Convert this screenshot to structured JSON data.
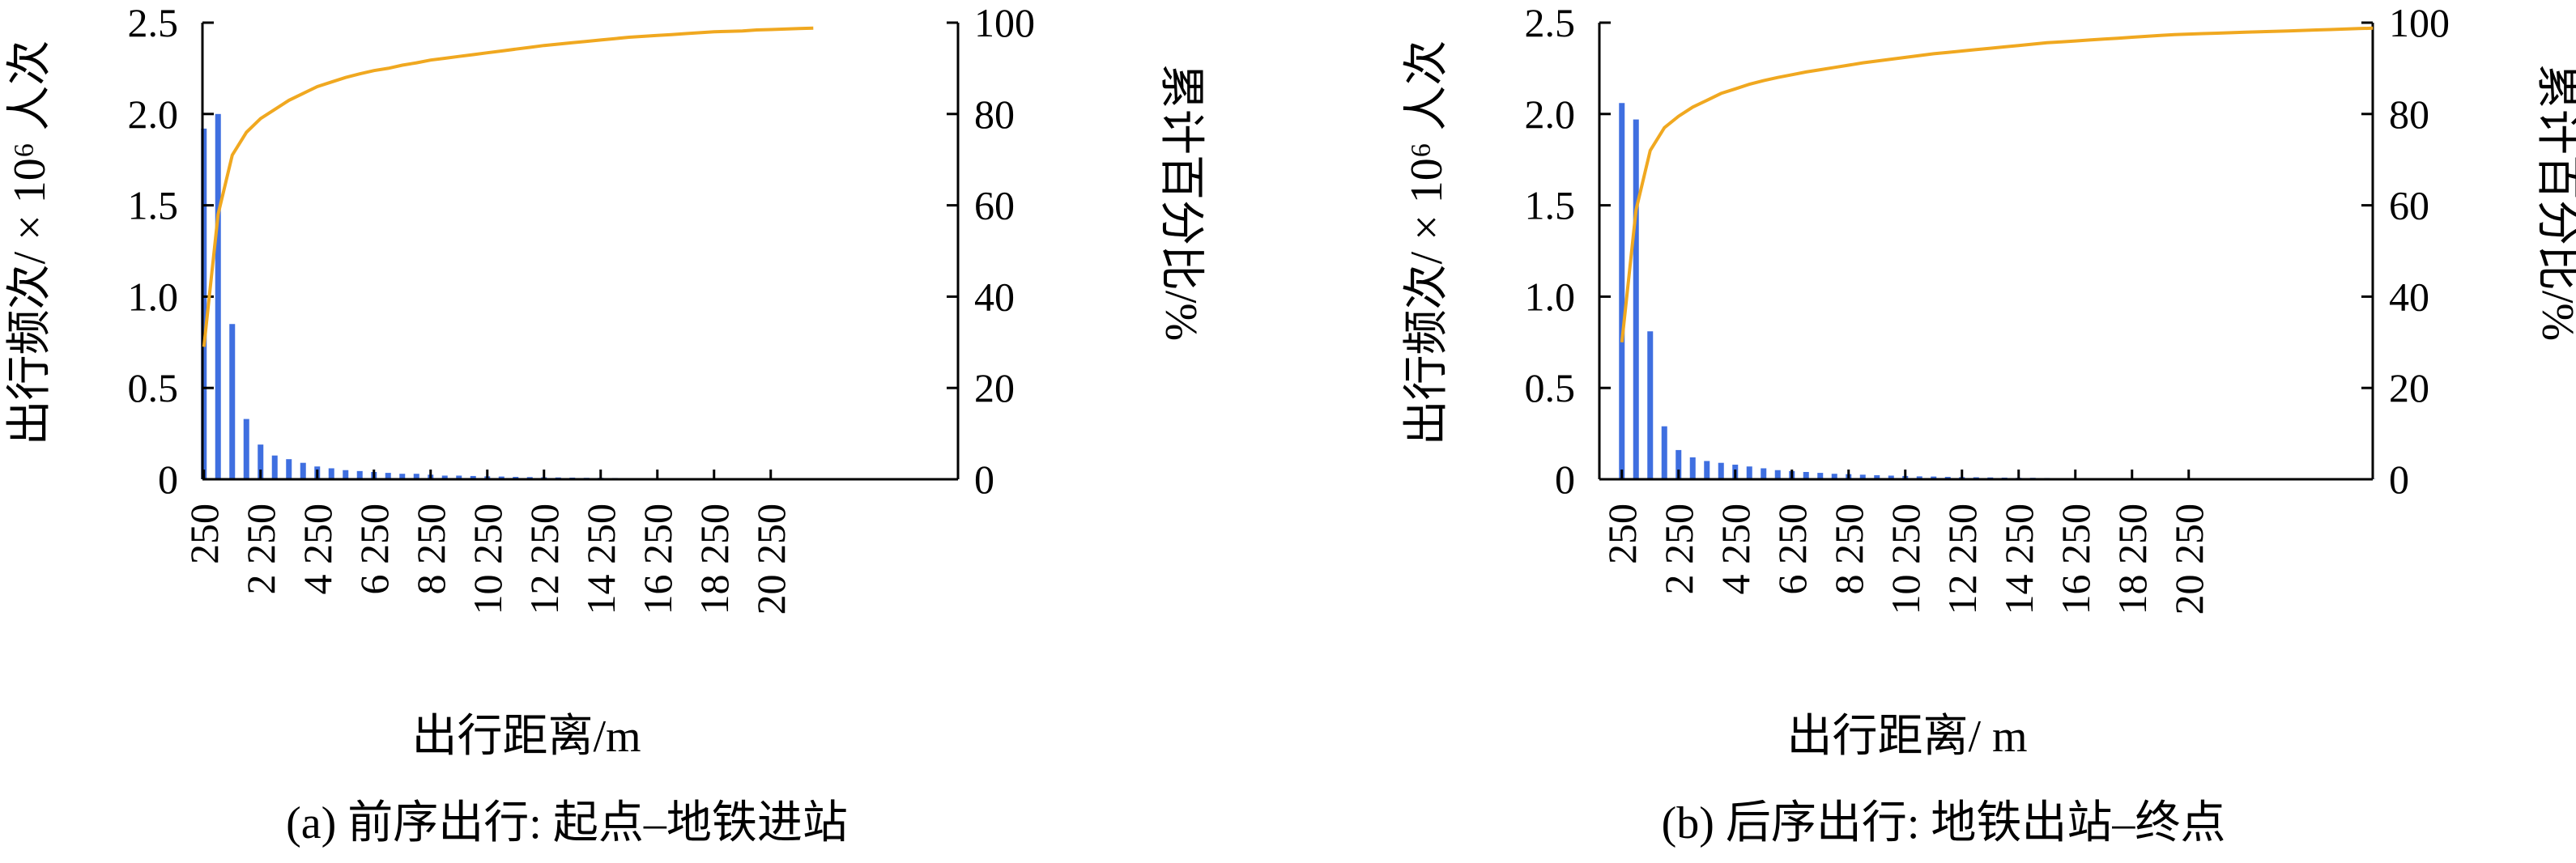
{
  "chart_data": [
    {
      "type": "bar+line",
      "caption": "(a) 前序出行: 起点–地铁进站",
      "xlabel": "出行距离/m",
      "ylabel_left": "出行频次/ × 10⁶ 人次",
      "ylabel_right": "累计百分比/%",
      "ylim_left": [
        0,
        2.5
      ],
      "ylim_right": [
        0,
        100
      ],
      "left_ticks": [
        "0",
        "0.5",
        "1.0",
        "1.5",
        "2.0",
        "2.5"
      ],
      "right_ticks": [
        "0",
        "20",
        "40",
        "60",
        "80",
        "100"
      ],
      "x_tick_labels": [
        "250",
        "2 250",
        "4 250",
        "6 250",
        "8 250",
        "10 250",
        "12 250",
        "14 250",
        "16 250",
        "18 250",
        "20 250"
      ],
      "bin_width": 500,
      "first_bin": 250,
      "bar_color": "#3f6fe0",
      "line_color": "#f0a820",
      "bars": [
        1.92,
        2.0,
        0.85,
        0.33,
        0.19,
        0.13,
        0.11,
        0.09,
        0.07,
        0.06,
        0.05,
        0.045,
        0.04,
        0.035,
        0.03,
        0.03,
        0.025,
        0.02,
        0.02,
        0.018,
        0.016,
        0.015,
        0.013,
        0.012,
        0.011,
        0.01,
        0.009,
        0.008,
        0.008,
        0.007,
        0.006,
        0.006,
        0.005,
        0.005,
        0.004,
        0.004,
        0.004,
        0.003,
        0.003,
        0.003,
        0.003,
        0.002,
        0.002,
        0.002
      ],
      "cumulative": [
        29,
        58,
        71,
        76,
        79,
        81,
        83,
        84.5,
        86,
        87,
        88,
        88.8,
        89.5,
        90,
        90.7,
        91.2,
        91.8,
        92.2,
        92.6,
        93,
        93.4,
        93.8,
        94.2,
        94.6,
        95,
        95.3,
        95.6,
        95.9,
        96.2,
        96.5,
        96.8,
        97,
        97.2,
        97.4,
        97.6,
        97.8,
        98,
        98.1,
        98.2,
        98.4,
        98.5,
        98.6,
        98.7,
        98.8
      ]
    },
    {
      "type": "bar+line",
      "caption": "(b) 后序出行: 地铁出站–终点",
      "xlabel": "出行距离/ m",
      "ylabel_left": "出行频次/ × 10⁶ 人次",
      "ylabel_right": "累计百分比/%",
      "ylim_left": [
        0,
        2.5
      ],
      "ylim_right": [
        0,
        100
      ],
      "left_ticks": [
        "0",
        "0.5",
        "1.0",
        "1.5",
        "2.0",
        "2.5"
      ],
      "right_ticks": [
        "0",
        "20",
        "40",
        "60",
        "80",
        "100"
      ],
      "x_tick_labels": [
        "250",
        "2 250",
        "4 250",
        "6 250",
        "8 250",
        "10 250",
        "12 250",
        "14 250",
        "16 250",
        "18 250",
        "20 250"
      ],
      "bin_width": 500,
      "first_bin": 250,
      "bar_color": "#3f6fe0",
      "line_color": "#f0a820",
      "bars": [
        2.06,
        1.97,
        0.81,
        0.29,
        0.16,
        0.12,
        0.1,
        0.09,
        0.08,
        0.07,
        0.06,
        0.05,
        0.045,
        0.04,
        0.035,
        0.03,
        0.028,
        0.025,
        0.022,
        0.02,
        0.018,
        0.016,
        0.015,
        0.013,
        0.012,
        0.011,
        0.01,
        0.009,
        0.008,
        0.008,
        0.007,
        0.006,
        0.006,
        0.005,
        0.005,
        0.004,
        0.004,
        0.004,
        0.003,
        0.003,
        0.003,
        0.002,
        0.002,
        0.002,
        0.002,
        0.002,
        0.002,
        0.001,
        0.001,
        0.001,
        0.001,
        0.001,
        0.001,
        0.001
      ],
      "cumulative": [
        30,
        59,
        72,
        77,
        79.5,
        81.5,
        83,
        84.5,
        85.5,
        86.5,
        87.3,
        88,
        88.6,
        89.2,
        89.7,
        90.2,
        90.7,
        91.2,
        91.6,
        92,
        92.4,
        92.8,
        93.2,
        93.5,
        93.8,
        94.1,
        94.4,
        94.7,
        95,
        95.3,
        95.6,
        95.8,
        96,
        96.2,
        96.4,
        96.6,
        96.8,
        97,
        97.2,
        97.4,
        97.5,
        97.6,
        97.7,
        97.8,
        97.9,
        98,
        98.1,
        98.2,
        98.3,
        98.4,
        98.5,
        98.6,
        98.7,
        98.8
      ]
    }
  ]
}
